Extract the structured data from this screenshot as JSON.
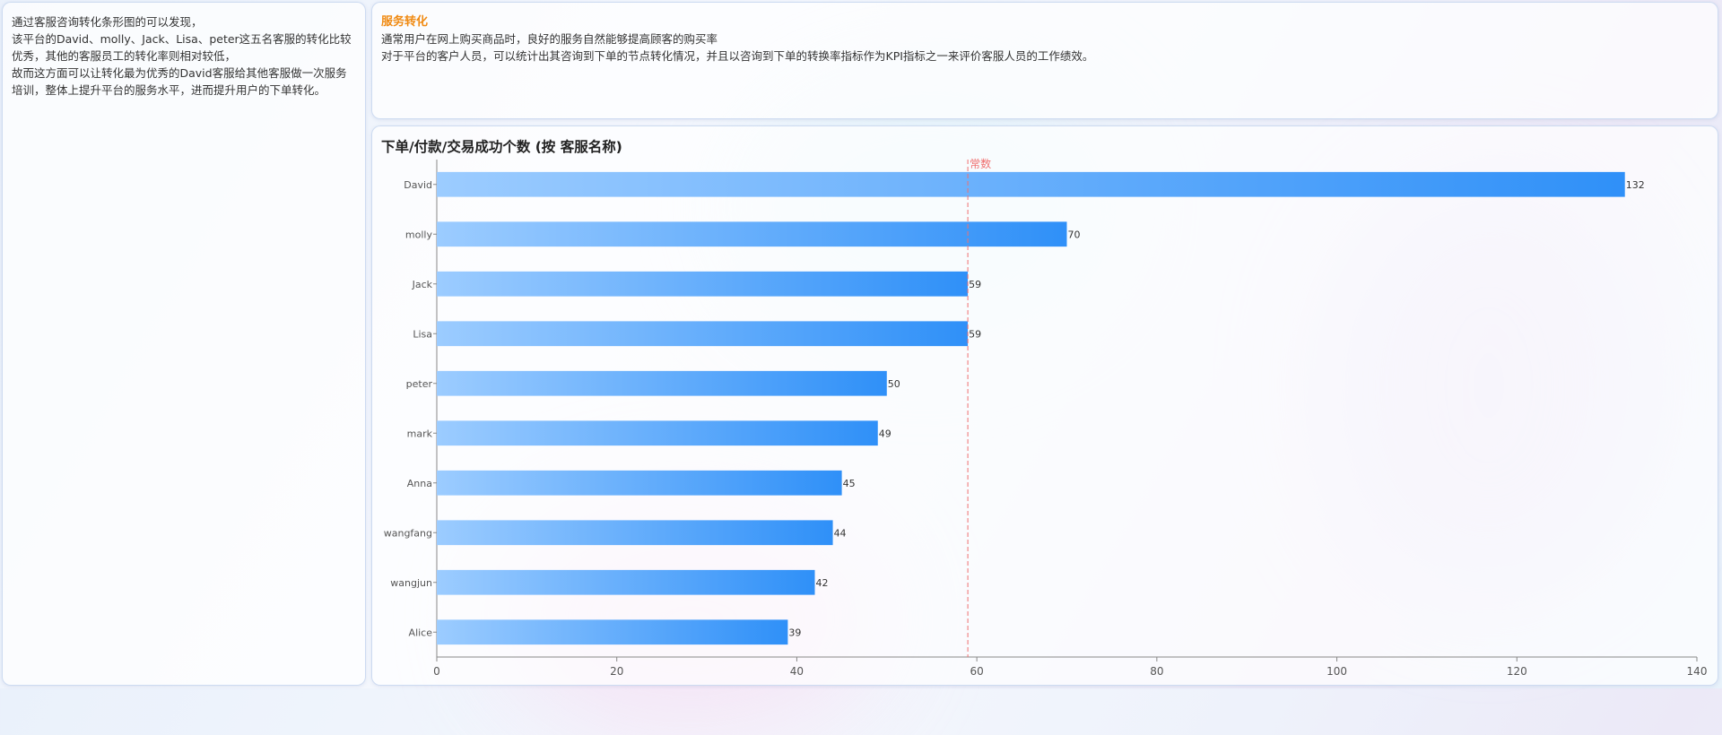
{
  "left_panel": {
    "paragraphs": [
      "通过客服咨询转化条形图的可以发现，",
      "该平台的David、molly、Jack、Lisa、peter这五名客服的转化比较优秀，其他的客服员工的转化率则相对较低，",
      "故而这方面可以让转化最为优秀的David客服给其他客服做一次服务培训，整体上提升平台的服务水平，进而提升用户的下单转化。"
    ]
  },
  "top_panel": {
    "title": "服务转化",
    "lines": [
      "通常用户在网上购买商品时，良好的服务自然能够提高顾客的购买率",
      "对于平台的客户人员，可以统计出其咨询到下单的节点转化情况，并且以咨询到下单的转换率指标作为KPI指标之一来评价客服人员的工作绩效。"
    ]
  },
  "colors": {
    "bar_start": "#9cccff",
    "bar_end": "#2f90f8",
    "markline": "#f07070"
  },
  "chart_data": {
    "type": "bar",
    "orientation": "horizontal",
    "title": "下单/付款/交易成功个数 (按 客服名称)",
    "categories": [
      "David",
      "molly",
      "Jack",
      "Lisa",
      "peter",
      "mark",
      "Anna",
      "wangfang",
      "wangjun",
      "Alice"
    ],
    "values": [
      132,
      70,
      59,
      59,
      50,
      49,
      45,
      44,
      42,
      39
    ],
    "xlim": [
      0,
      140
    ],
    "xticks": [
      0,
      20,
      40,
      60,
      80,
      100,
      120,
      140
    ],
    "mark_line": {
      "label": "常数",
      "value": 59
    },
    "grid": false,
    "legend": "none"
  }
}
